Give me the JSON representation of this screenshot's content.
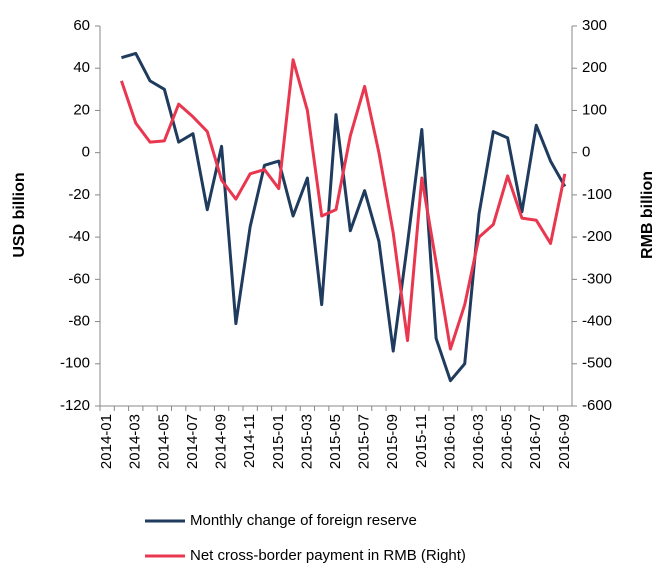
{
  "chart_data": {
    "type": "line",
    "categories": [
      "2014-01",
      null,
      "2014-03",
      null,
      "2014-05",
      null,
      "2014-07",
      null,
      "2014-09",
      null,
      "2014-11",
      null,
      "2015-01",
      null,
      "2015-03",
      null,
      "2015-05",
      null,
      "2015-07",
      null,
      "2015-09",
      null,
      "2015-11",
      null,
      "2016-01",
      null,
      "2016-03",
      null,
      "2016-05",
      null,
      "2016-07",
      null,
      "2016-09"
    ],
    "y_label": "USD billion",
    "y2_label": "RMB billion",
    "ylim": [
      -120,
      60
    ],
    "yticks": [
      -120,
      -100,
      -80,
      -60,
      -40,
      -20,
      0,
      20,
      40,
      60
    ],
    "y2lim": [
      -600,
      300
    ],
    "y2ticks": [
      -600,
      -500,
      -400,
      -300,
      -200,
      -100,
      0,
      100,
      200,
      300
    ],
    "legend": "bottom",
    "series": [
      {
        "name": "Monthly change of foreign reserve",
        "color": "#1f3b5e",
        "values": [
          null,
          45,
          47,
          34,
          30,
          5,
          9,
          -27,
          3,
          -81,
          -35,
          -6,
          -4,
          -30,
          -12,
          -72,
          18,
          -37,
          -18,
          -42,
          -94,
          -43,
          11,
          -88,
          -108,
          -100,
          -29,
          10,
          7,
          -28,
          13,
          -4,
          -16
        ]
      },
      {
        "name": "Net cross-border payment in RMB (Right)",
        "color": "#e8374f",
        "axis": "y2",
        "values": [
          null,
          170,
          70,
          25,
          28,
          115,
          85,
          50,
          -65,
          -110,
          -50,
          -40,
          -85,
          220,
          100,
          -150,
          -135,
          40,
          157,
          0,
          -190,
          -445,
          -60,
          -260,
          -465,
          -360,
          -200,
          -170,
          -55,
          -155,
          -160,
          -215,
          -50
        ]
      }
    ]
  }
}
